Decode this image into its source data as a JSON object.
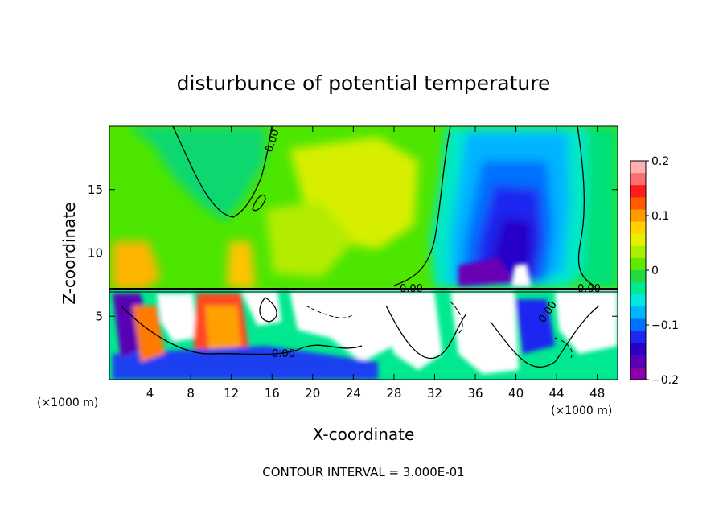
{
  "chart_data": {
    "type": "heatmap",
    "title": "disturbunce of potential temperature",
    "xlabel": "X-coordinate",
    "ylabel": "Z-coordinate",
    "x_unit_left": "(×1000 m)",
    "x_unit_right": "(×1000 m)",
    "xlim": [
      0,
      50
    ],
    "ylim": [
      0,
      20
    ],
    "x_ticks": [
      4,
      8,
      12,
      16,
      20,
      24,
      28,
      32,
      36,
      40,
      44,
      48
    ],
    "x_tick_labels": [
      "4",
      "8",
      "12",
      "16",
      "20",
      "24",
      "28",
      "32",
      "36",
      "40",
      "44",
      "48"
    ],
    "y_ticks": [
      5,
      10,
      15
    ],
    "y_tick_labels": [
      "5",
      "10",
      "15"
    ],
    "colorbar": {
      "range": [
        -0.2,
        0.2
      ],
      "ticks": [
        0.2,
        0.1,
        0,
        -0.1,
        -0.2
      ],
      "tick_labels": [
        "0.2",
        "0.1",
        "0",
        "−0.1",
        "−0.2"
      ],
      "colors": [
        "#ffb0b0",
        "#ff6e6e",
        "#ff1c1c",
        "#ff5a00",
        "#ff9a00",
        "#ffd200",
        "#e8f000",
        "#a8f000",
        "#60e800",
        "#20dc40",
        "#00e890",
        "#00e8e0",
        "#00b4ff",
        "#0070ff",
        "#1e28f0",
        "#2800c8",
        "#5a00b4",
        "#8c00aa"
      ]
    },
    "contour_labels": [
      "0.00",
      "0.00",
      "0.00",
      "0.00",
      "0.00"
    ],
    "contour_interval_text": "CONTOUR INTERVAL = 3.000E-01",
    "regions": [
      {
        "name": "upper-left-green",
        "x_range": [
          0,
          28
        ],
        "z_range": [
          7,
          20
        ],
        "value": 0.02
      },
      {
        "name": "upper-yellow-band",
        "x_range": [
          16,
          30
        ],
        "z_range": [
          8,
          16
        ],
        "value": 0.07
      },
      {
        "name": "cold-anomaly-core",
        "x_range": [
          33,
          46
        ],
        "z_range": [
          7,
          20
        ],
        "value": -0.18
      },
      {
        "name": "lower-turbulent-layer",
        "x_range": [
          0,
          50
        ],
        "z_range": [
          0,
          7
        ],
        "value": 0.0
      }
    ]
  }
}
